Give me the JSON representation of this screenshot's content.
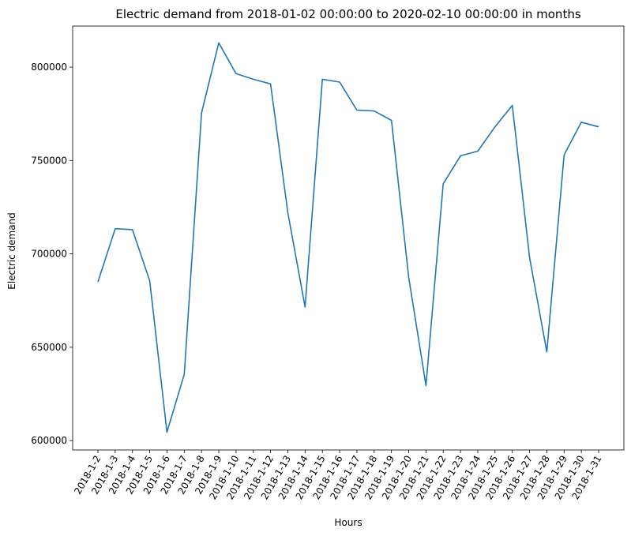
{
  "chart_data": {
    "type": "line",
    "title": "Electric demand from 2018-01-02 00:00:00 to 2020-02-10 00:00:00 in months",
    "xlabel": "Hours",
    "ylabel": "Electric demand",
    "ylim": [
      595000,
      822000
    ],
    "yticks": [
      600000,
      650000,
      700000,
      750000,
      800000
    ],
    "ytick_labels": [
      "600000",
      "650000",
      "700000",
      "750000",
      "800000"
    ],
    "grid": false,
    "line_color": "#1f77b4",
    "categories": [
      "2018-1-2",
      "2018-1-3",
      "2018-1-4",
      "2018-1-5",
      "2018-1-6",
      "2018-1-7",
      "2018-1-8",
      "2018-1-9",
      "2018-1-10",
      "2018-1-11",
      "2018-1-12",
      "2018-1-13",
      "2018-1-14",
      "2018-1-15",
      "2018-1-16",
      "2018-1-17",
      "2018-1-18",
      "2018-1-19",
      "2018-1-20",
      "2018-1-21",
      "2018-1-22",
      "2018-1-23",
      "2018-1-24",
      "2018-1-25",
      "2018-1-26",
      "2018-1-27",
      "2018-1-28",
      "2018-1-29",
      "2018-1-30",
      "2018-1-31"
    ],
    "values": [
      685000,
      713500,
      713000,
      685500,
      604500,
      635500,
      775500,
      813000,
      796500,
      793500,
      791000,
      722000,
      671500,
      793500,
      792000,
      777000,
      776500,
      771500,
      687500,
      629500,
      737500,
      752500,
      755000,
      768000,
      779500,
      698000,
      647500,
      753000,
      770500,
      768000
    ]
  }
}
